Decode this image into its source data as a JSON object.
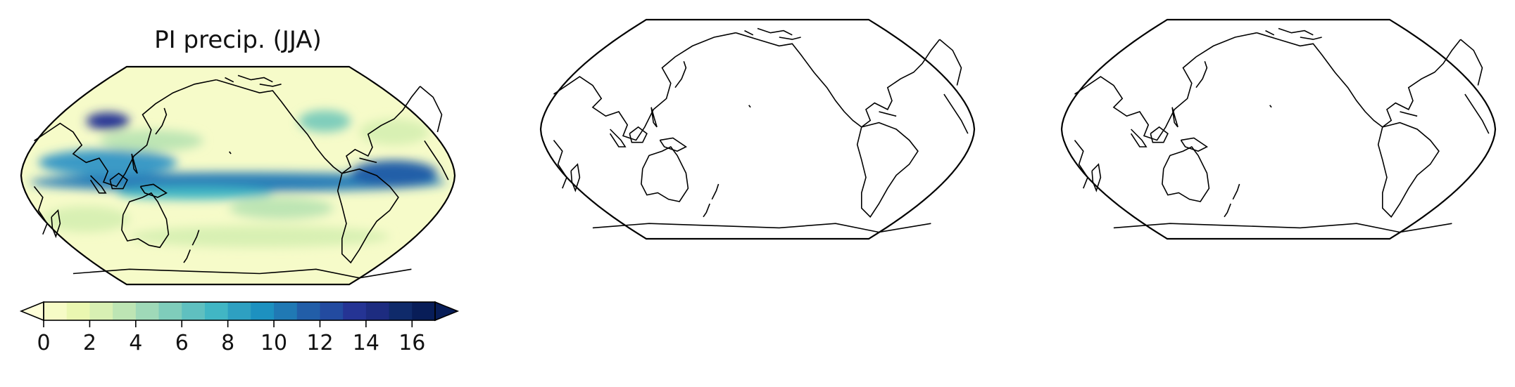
{
  "panels": [
    {
      "title": "PI precip. (JJA)",
      "filled": true
    },
    {
      "title": "",
      "filled": false
    },
    {
      "title": "",
      "filled": false
    }
  ],
  "projection": "Robinson, central longitude 180",
  "colormap": "YlGnBu",
  "colorbar": {
    "orientation": "horizontal",
    "extend": "both",
    "levels": [
      0,
      1,
      2,
      3,
      4,
      5,
      6,
      7,
      8,
      9,
      10,
      11,
      12,
      13,
      14,
      15,
      16,
      17
    ],
    "tick_labels": [
      "0",
      "2",
      "4",
      "6",
      "8",
      "10",
      "12",
      "14",
      "16"
    ],
    "colors": [
      "#ffffd9",
      "#f6fbc6",
      "#eaf7b1",
      "#d8f0b3",
      "#bde5b4",
      "#9fd9b8",
      "#7fcdbb",
      "#5fc0c0",
      "#41b6c4",
      "#2ea0c1",
      "#1d91c0",
      "#2079b4",
      "#225ea8",
      "#234ba0",
      "#253494",
      "#1d2c80",
      "#0f2a6a",
      "#081d58"
    ]
  }
}
